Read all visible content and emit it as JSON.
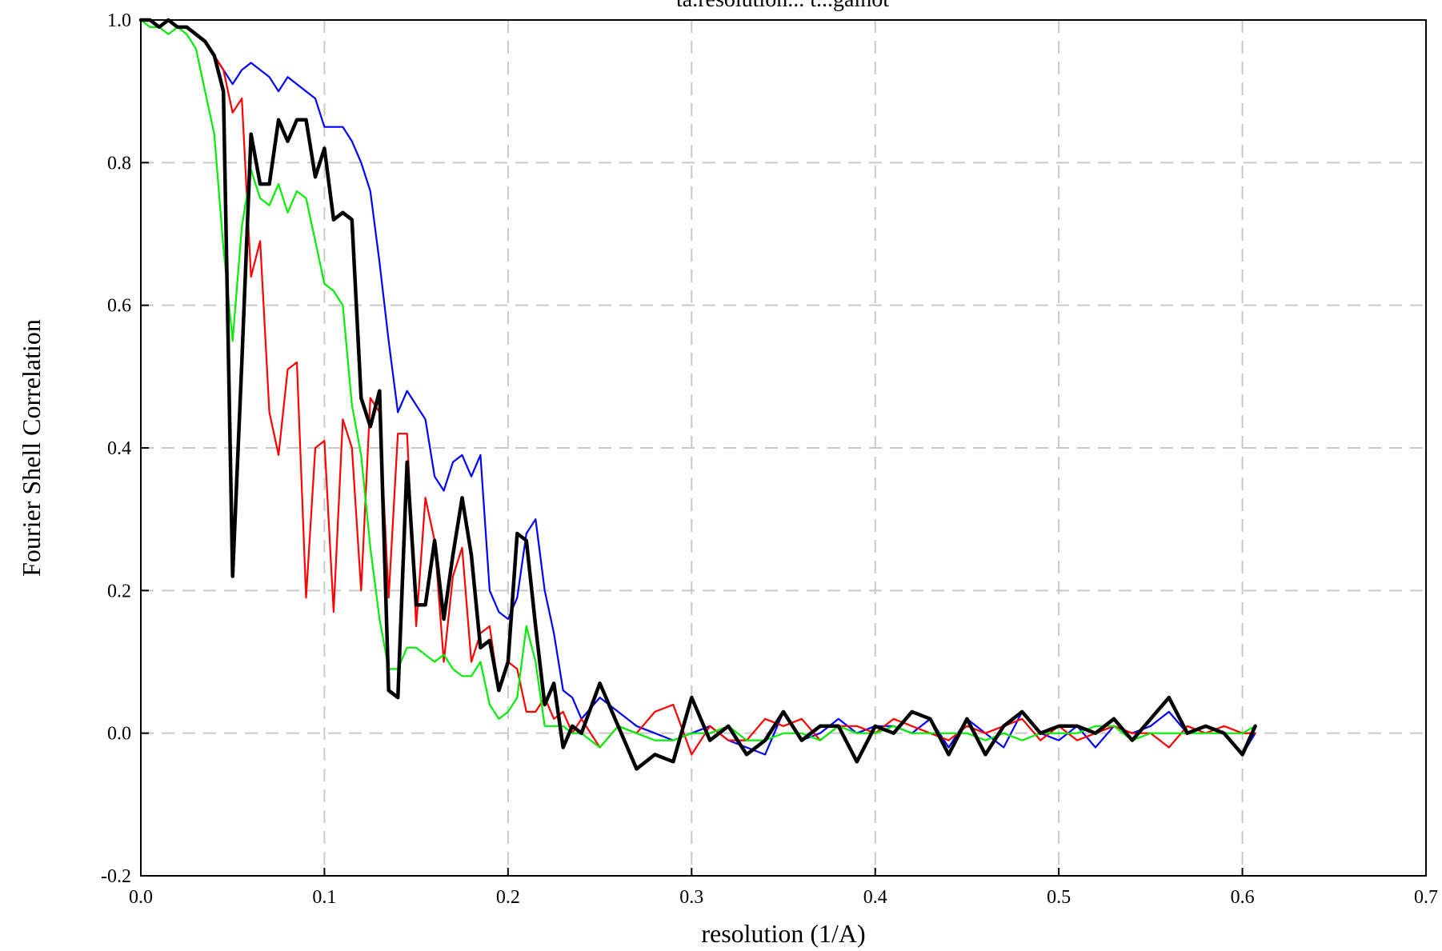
{
  "chart_data": {
    "type": "line",
    "title": "ta.resolution... t...galnot",
    "xlabel": "resolution (1/A)",
    "ylabel": "Fourier Shell Correlation",
    "xlim": [
      0.0,
      0.7
    ],
    "ylim": [
      -0.2,
      1.0
    ],
    "x_ticks": [
      "0.0",
      "0.1",
      "0.2",
      "0.3",
      "0.4",
      "0.5",
      "0.6",
      "0.7"
    ],
    "y_ticks": [
      "-0.2",
      "0.0",
      "0.2",
      "0.4",
      "0.6",
      "0.8",
      "1.0"
    ],
    "grid": true,
    "legend": "none",
    "series": [
      {
        "color": "#0000ff",
        "x": [
          0.0,
          0.005,
          0.01,
          0.015,
          0.02,
          0.025,
          0.03,
          0.035,
          0.04,
          0.045,
          0.05,
          0.055,
          0.06,
          0.065,
          0.07,
          0.075,
          0.08,
          0.085,
          0.09,
          0.095,
          0.1,
          0.105,
          0.11,
          0.115,
          0.12,
          0.125,
          0.13,
          0.135,
          0.14,
          0.145,
          0.15,
          0.155,
          0.16,
          0.165,
          0.17,
          0.175,
          0.18,
          0.185,
          0.19,
          0.195,
          0.2,
          0.205,
          0.21,
          0.215,
          0.22,
          0.225,
          0.23,
          0.235,
          0.24,
          0.25,
          0.26,
          0.27,
          0.28,
          0.29,
          0.3,
          0.31,
          0.32,
          0.33,
          0.34,
          0.35,
          0.36,
          0.37,
          0.38,
          0.39,
          0.4,
          0.41,
          0.42,
          0.43,
          0.44,
          0.45,
          0.46,
          0.47,
          0.48,
          0.49,
          0.5,
          0.51,
          0.52,
          0.53,
          0.54,
          0.55,
          0.56,
          0.57,
          0.58,
          0.59,
          0.6,
          0.607
        ],
        "y": [
          1.0,
          1.0,
          0.99,
          1.0,
          0.99,
          0.99,
          0.98,
          0.97,
          0.95,
          0.93,
          0.91,
          0.93,
          0.94,
          0.93,
          0.92,
          0.9,
          0.92,
          0.91,
          0.9,
          0.89,
          0.85,
          0.85,
          0.85,
          0.83,
          0.8,
          0.76,
          0.66,
          0.55,
          0.45,
          0.48,
          0.46,
          0.44,
          0.36,
          0.34,
          0.38,
          0.39,
          0.36,
          0.39,
          0.2,
          0.17,
          0.16,
          0.19,
          0.28,
          0.3,
          0.2,
          0.14,
          0.06,
          0.05,
          0.02,
          0.05,
          0.03,
          0.01,
          0.0,
          -0.01,
          0.0,
          0.01,
          -0.01,
          -0.02,
          -0.03,
          0.03,
          -0.01,
          0.0,
          0.02,
          0.0,
          0.01,
          0.01,
          0.0,
          0.02,
          -0.02,
          0.02,
          0.0,
          -0.02,
          0.03,
          0.0,
          -0.01,
          0.01,
          -0.02,
          0.01,
          0.0,
          0.01,
          0.03,
          0.0,
          0.01,
          0.0,
          -0.03,
          0.0
        ]
      },
      {
        "color": "#ff0000",
        "x": [
          0.0,
          0.005,
          0.01,
          0.015,
          0.02,
          0.025,
          0.03,
          0.035,
          0.04,
          0.045,
          0.05,
          0.055,
          0.06,
          0.065,
          0.07,
          0.075,
          0.08,
          0.085,
          0.09,
          0.095,
          0.1,
          0.105,
          0.11,
          0.115,
          0.12,
          0.125,
          0.13,
          0.135,
          0.14,
          0.145,
          0.15,
          0.155,
          0.16,
          0.165,
          0.17,
          0.175,
          0.18,
          0.185,
          0.19,
          0.195,
          0.2,
          0.205,
          0.21,
          0.215,
          0.22,
          0.225,
          0.23,
          0.235,
          0.24,
          0.25,
          0.26,
          0.27,
          0.28,
          0.29,
          0.3,
          0.31,
          0.32,
          0.33,
          0.34,
          0.35,
          0.36,
          0.37,
          0.38,
          0.39,
          0.4,
          0.41,
          0.42,
          0.43,
          0.44,
          0.45,
          0.46,
          0.47,
          0.48,
          0.49,
          0.5,
          0.51,
          0.52,
          0.53,
          0.54,
          0.55,
          0.56,
          0.57,
          0.58,
          0.59,
          0.6,
          0.607
        ],
        "y": [
          1.0,
          1.0,
          0.99,
          1.0,
          0.99,
          0.99,
          0.98,
          0.97,
          0.95,
          0.93,
          0.87,
          0.89,
          0.64,
          0.69,
          0.45,
          0.39,
          0.51,
          0.52,
          0.19,
          0.4,
          0.41,
          0.17,
          0.44,
          0.4,
          0.2,
          0.47,
          0.45,
          0.19,
          0.42,
          0.42,
          0.15,
          0.33,
          0.27,
          0.1,
          0.22,
          0.26,
          0.1,
          0.14,
          0.15,
          0.06,
          0.1,
          0.09,
          0.03,
          0.03,
          0.05,
          0.02,
          0.03,
          0.0,
          0.02,
          -0.02,
          0.01,
          0.0,
          0.03,
          0.04,
          -0.03,
          0.01,
          -0.01,
          -0.01,
          0.02,
          0.01,
          0.02,
          -0.01,
          0.01,
          0.01,
          0.0,
          0.02,
          0.01,
          0.0,
          -0.01,
          0.01,
          0.0,
          0.01,
          0.02,
          -0.01,
          0.01,
          -0.01,
          0.0,
          0.01,
          0.0,
          0.0,
          -0.02,
          0.01,
          0.0,
          0.01,
          0.0,
          0.0
        ]
      },
      {
        "color": "#00ee00",
        "x": [
          0.0,
          0.005,
          0.01,
          0.015,
          0.02,
          0.025,
          0.03,
          0.035,
          0.04,
          0.045,
          0.05,
          0.055,
          0.06,
          0.065,
          0.07,
          0.075,
          0.08,
          0.085,
          0.09,
          0.095,
          0.1,
          0.105,
          0.11,
          0.115,
          0.12,
          0.125,
          0.13,
          0.135,
          0.14,
          0.145,
          0.15,
          0.155,
          0.16,
          0.165,
          0.17,
          0.175,
          0.18,
          0.185,
          0.19,
          0.195,
          0.2,
          0.205,
          0.21,
          0.215,
          0.22,
          0.225,
          0.23,
          0.235,
          0.24,
          0.25,
          0.26,
          0.27,
          0.28,
          0.29,
          0.3,
          0.31,
          0.32,
          0.33,
          0.34,
          0.35,
          0.36,
          0.37,
          0.38,
          0.39,
          0.4,
          0.41,
          0.42,
          0.43,
          0.44,
          0.45,
          0.46,
          0.47,
          0.48,
          0.49,
          0.5,
          0.51,
          0.52,
          0.53,
          0.54,
          0.55,
          0.56,
          0.57,
          0.58,
          0.59,
          0.6,
          0.607
        ],
        "y": [
          1.0,
          0.99,
          0.99,
          0.98,
          0.99,
          0.98,
          0.96,
          0.9,
          0.84,
          0.68,
          0.55,
          0.71,
          0.79,
          0.75,
          0.74,
          0.77,
          0.73,
          0.76,
          0.75,
          0.69,
          0.63,
          0.62,
          0.6,
          0.46,
          0.39,
          0.26,
          0.16,
          0.09,
          0.09,
          0.12,
          0.12,
          0.11,
          0.1,
          0.11,
          0.09,
          0.08,
          0.08,
          0.1,
          0.04,
          0.02,
          0.03,
          0.05,
          0.15,
          0.1,
          0.01,
          0.01,
          0.01,
          0.0,
          0.0,
          -0.02,
          0.01,
          0.0,
          -0.01,
          -0.01,
          0.0,
          0.0,
          0.01,
          -0.01,
          -0.01,
          0.0,
          0.0,
          -0.01,
          0.01,
          0.0,
          0.0,
          0.01,
          0.0,
          0.0,
          0.0,
          0.0,
          -0.01,
          0.0,
          -0.01,
          0.0,
          0.0,
          0.0,
          0.01,
          0.01,
          -0.01,
          0.0,
          0.0,
          0.0,
          0.0,
          0.0,
          0.0,
          0.01
        ]
      },
      {
        "color": "#000000",
        "x": [
          0.0,
          0.005,
          0.01,
          0.015,
          0.02,
          0.025,
          0.03,
          0.035,
          0.04,
          0.045,
          0.05,
          0.055,
          0.06,
          0.065,
          0.07,
          0.075,
          0.08,
          0.085,
          0.09,
          0.095,
          0.1,
          0.105,
          0.11,
          0.115,
          0.12,
          0.125,
          0.13,
          0.135,
          0.14,
          0.145,
          0.15,
          0.155,
          0.16,
          0.165,
          0.17,
          0.175,
          0.18,
          0.185,
          0.19,
          0.195,
          0.2,
          0.205,
          0.21,
          0.215,
          0.22,
          0.225,
          0.23,
          0.235,
          0.24,
          0.25,
          0.26,
          0.27,
          0.28,
          0.29,
          0.3,
          0.31,
          0.32,
          0.33,
          0.34,
          0.35,
          0.36,
          0.37,
          0.38,
          0.39,
          0.4,
          0.41,
          0.42,
          0.43,
          0.44,
          0.45,
          0.46,
          0.47,
          0.48,
          0.49,
          0.5,
          0.51,
          0.52,
          0.53,
          0.54,
          0.55,
          0.56,
          0.57,
          0.58,
          0.59,
          0.6,
          0.607
        ],
        "y": [
          1.0,
          1.0,
          0.99,
          1.0,
          0.99,
          0.99,
          0.98,
          0.97,
          0.95,
          0.9,
          0.22,
          0.52,
          0.84,
          0.77,
          0.77,
          0.86,
          0.83,
          0.86,
          0.86,
          0.78,
          0.82,
          0.72,
          0.73,
          0.72,
          0.47,
          0.43,
          0.48,
          0.06,
          0.05,
          0.38,
          0.18,
          0.18,
          0.27,
          0.16,
          0.25,
          0.33,
          0.25,
          0.12,
          0.13,
          0.06,
          0.1,
          0.28,
          0.27,
          0.15,
          0.04,
          0.07,
          -0.02,
          0.01,
          0.0,
          0.07,
          0.01,
          -0.05,
          -0.03,
          -0.04,
          0.05,
          -0.01,
          0.01,
          -0.03,
          -0.01,
          0.03,
          -0.01,
          0.01,
          0.01,
          -0.04,
          0.01,
          0.0,
          0.03,
          0.02,
          -0.03,
          0.02,
          -0.03,
          0.01,
          0.03,
          0.0,
          0.01,
          0.01,
          0.0,
          0.02,
          -0.01,
          0.02,
          0.05,
          0.0,
          0.01,
          0.0,
          -0.03,
          0.01
        ]
      }
    ]
  }
}
